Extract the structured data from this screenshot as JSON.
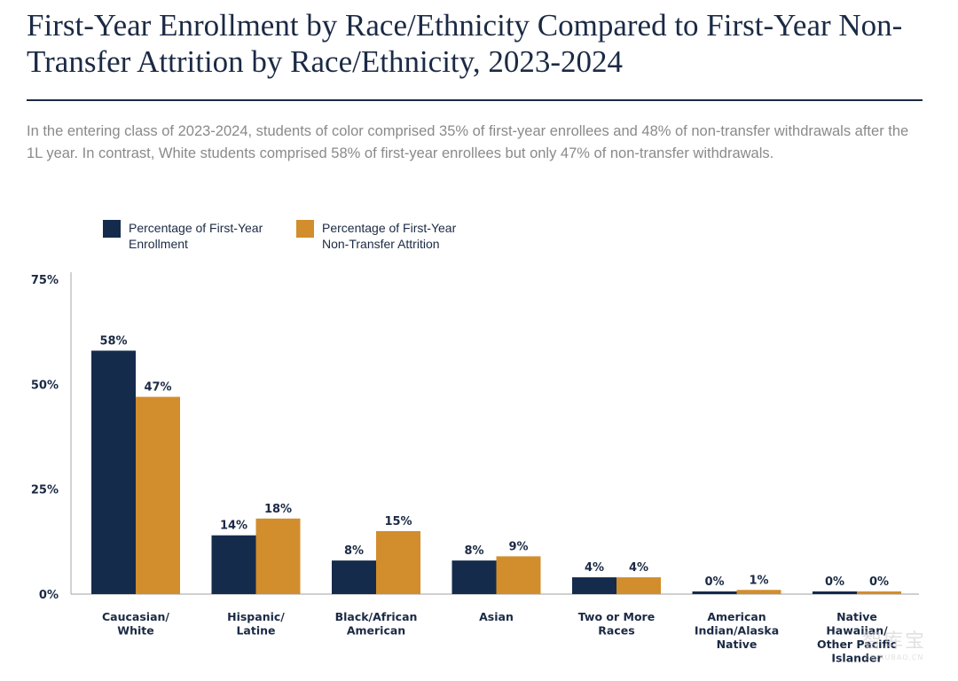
{
  "header": {
    "title": "First-Year Enrollment by Race/Ethnicity Compared to First-Year Non-Transfer Attrition by Race/Ethnicity, 2023-2024",
    "subtitle": "In the entering class of 2023-2024, students of color comprised 35% of first-year enrollees and 48% of non-transfer withdrawals after the 1L year. In contrast, White students comprised 58% of first-year enrollees but only 47% of non-transfer withdrawals."
  },
  "legend": {
    "items": [
      {
        "label": "Percentage of First-Year Enrollment",
        "color": "#142b4c"
      },
      {
        "label": "Percentage of First-Year Non-Transfer Attrition",
        "color": "#d28d2c"
      }
    ]
  },
  "watermark": {
    "main": "智库宝",
    "sub": "ZHIKUBAO.CN"
  },
  "chart_data": {
    "type": "bar",
    "title": "First-Year Enrollment by Race/Ethnicity Compared to First-Year Non-Transfer Attrition by Race/Ethnicity, 2023-2024",
    "categories": [
      [
        "Caucasian/",
        "White"
      ],
      [
        "Hispanic/",
        "Latine"
      ],
      [
        "Black/African",
        "American"
      ],
      [
        "Asian"
      ],
      [
        "Two or More",
        "Races"
      ],
      [
        "American",
        "Indian/Alaska",
        "Native"
      ],
      [
        "Native",
        "Hawaiian/",
        "Other Pacific",
        "Islander"
      ]
    ],
    "series": [
      {
        "name": "Percentage of First-Year Enrollment",
        "color": "#142b4c",
        "values": [
          58,
          14,
          8,
          8,
          4,
          0,
          0
        ],
        "labels": [
          "58%",
          "14%",
          "8%",
          "8%",
          "4%",
          "0%",
          "0%"
        ]
      },
      {
        "name": "Percentage of First-Year Non-Transfer Attrition",
        "color": "#d28d2c",
        "values": [
          47,
          18,
          15,
          9,
          4,
          1,
          0
        ],
        "labels": [
          "47%",
          "18%",
          "15%",
          "9%",
          "4%",
          "1%",
          "0%"
        ]
      }
    ],
    "ylim": [
      0,
      75
    ],
    "yticks": [
      0,
      25,
      50,
      75
    ],
    "ytick_labels": [
      "0%",
      "25%",
      "50%",
      "75%"
    ],
    "xlabel": "",
    "ylabel": "",
    "grid": false,
    "legend_position": "top-left"
  }
}
